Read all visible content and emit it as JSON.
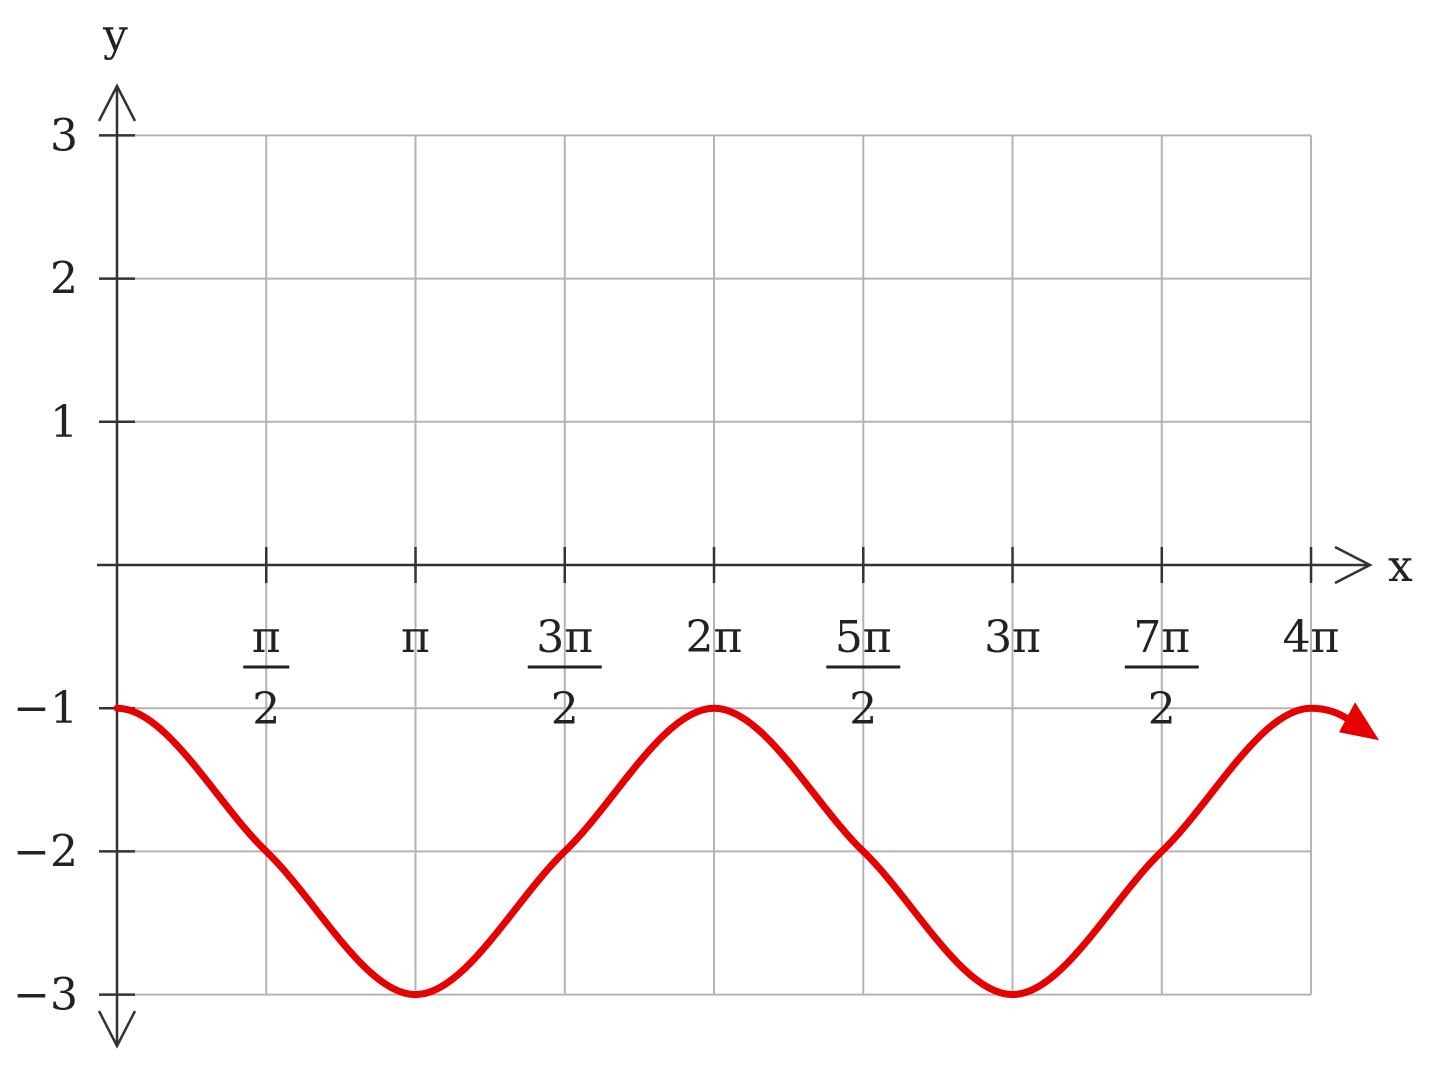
{
  "chart_data": {
    "type": "line",
    "xlabel": "x",
    "ylabel": "y",
    "xlim": [
      0,
      12.566
    ],
    "ylim": [
      -3,
      3
    ],
    "grid": true,
    "x_ticks": [
      {
        "value": 1.5708,
        "num": "π",
        "den": "2"
      },
      {
        "value": 3.1416,
        "num": "π",
        "den": ""
      },
      {
        "value": 4.7124,
        "num": "3π",
        "den": "2"
      },
      {
        "value": 6.2832,
        "num": "2π",
        "den": ""
      },
      {
        "value": 7.854,
        "num": "5π",
        "den": "2"
      },
      {
        "value": 9.4248,
        "num": "3π",
        "den": ""
      },
      {
        "value": 10.9956,
        "num": "7π",
        "den": "2"
      },
      {
        "value": 12.5664,
        "num": "4π",
        "den": ""
      }
    ],
    "y_ticks": [
      {
        "value": 3,
        "label": "3"
      },
      {
        "value": 2,
        "label": "2"
      },
      {
        "value": 1,
        "label": "1"
      },
      {
        "value": -1,
        "label": "−1"
      },
      {
        "value": -2,
        "label": "−2"
      },
      {
        "value": -3,
        "label": "−3"
      }
    ],
    "series": [
      {
        "color": "#e60000",
        "x": [
          0,
          1.5708,
          3.1416,
          4.7124,
          6.2832,
          7.854,
          9.4248,
          10.9956,
          12.5664
        ],
        "y": [
          -1,
          -2,
          -3,
          -2,
          -1,
          -2,
          -3,
          -2,
          -1
        ]
      }
    ]
  }
}
